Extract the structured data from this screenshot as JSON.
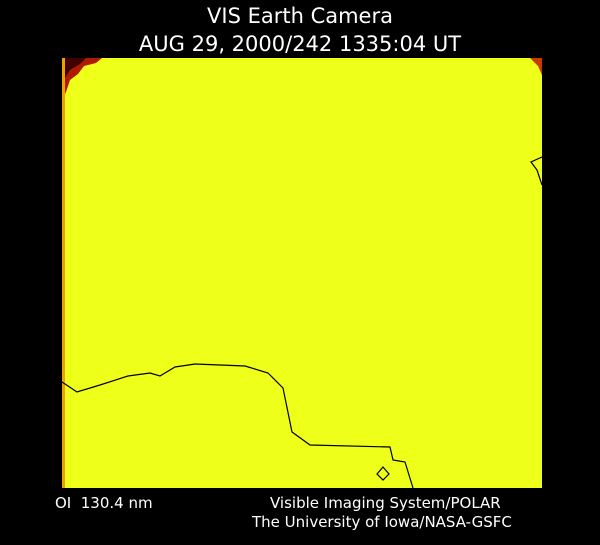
{
  "header": {
    "title": "VIS Earth Camera",
    "timestamp": "AUG 29, 2000/242 1335:04 UT"
  },
  "footer": {
    "filter": "OI  130.4 nm",
    "instrument": "Visible Imaging System/POLAR",
    "institution": "The University of Iowa/NASA-GSFC"
  }
}
